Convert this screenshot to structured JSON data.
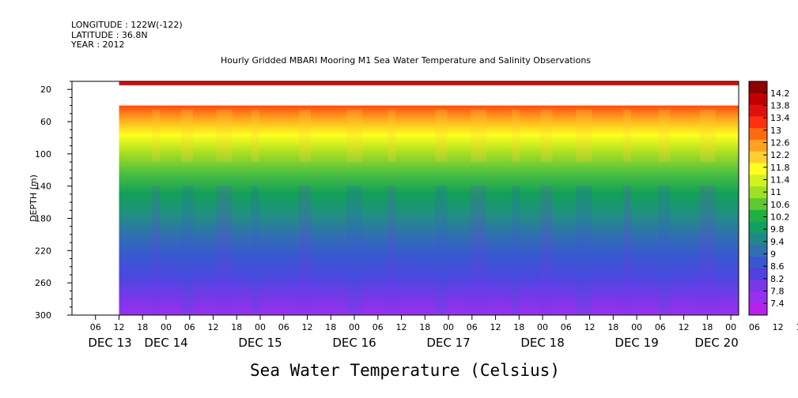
{
  "header": {
    "longitude": "LONGITUDE : 122W(-122)",
    "latitude": "LATITUDE : 36.8N",
    "year": "YEAR : 2012"
  },
  "chart_data": {
    "type": "heatmap",
    "title": "Hourly Gridded MBARI Mooring M1 Sea Water Temperature and Salinity Observations",
    "ylabel": "DEPTH (m)",
    "xlabel": "",
    "footer": "Sea Water Temperature (Celsius)",
    "y_ticks": [
      20,
      60,
      100,
      140,
      180,
      220,
      260,
      300
    ],
    "ylim": [
      300,
      10
    ],
    "y_inverted": true,
    "x_hour_ticks": [
      "06",
      "12",
      "18",
      "00",
      "06",
      "12",
      "18",
      "00",
      "06",
      "12",
      "18",
      "00",
      "06",
      "12",
      "18",
      "00",
      "06",
      "12",
      "18",
      "00",
      "06",
      "12",
      "18",
      "00",
      "06",
      "12",
      "18",
      "00",
      "06",
      "12",
      "18",
      "00"
    ],
    "x_day_labels": [
      "DEC 13",
      "DEC 14",
      "DEC 15",
      "DEC 16",
      "DEC 17",
      "DEC 18",
      "DEC 19",
      "DEC 20"
    ],
    "x_start": "2012-12-13 00:00",
    "x_end": "2012-12-20 02:00",
    "data_start": "2012-12-13 12:00",
    "depth_bands": [
      {
        "depth_top": 10,
        "depth_bottom": 15,
        "value": 14.2
      },
      {
        "depth_top": 40,
        "depth_bottom": 50,
        "value": 13.0
      },
      {
        "depth_top": 50,
        "depth_bottom": 70,
        "value": 12.0
      },
      {
        "depth_top": 70,
        "depth_bottom": 100,
        "value": 11.0
      },
      {
        "depth_top": 100,
        "depth_bottom": 160,
        "value": 10.0
      },
      {
        "depth_top": 160,
        "depth_bottom": 200,
        "value": 9.4
      },
      {
        "depth_top": 200,
        "depth_bottom": 240,
        "value": 8.8
      },
      {
        "depth_top": 240,
        "depth_bottom": 280,
        "value": 8.2
      },
      {
        "depth_top": 280,
        "depth_bottom": 300,
        "value": 7.8
      }
    ],
    "colorbar": {
      "labels": [
        "14.2",
        "13.8",
        "13.4",
        "13",
        "12.6",
        "12.2",
        "11.8",
        "11.4",
        "11",
        "10.6",
        "10.2",
        "9.8",
        "9.4",
        "9",
        "8.6",
        "8.2",
        "7.8",
        "7.4"
      ],
      "colors": [
        "#8b0000",
        "#c00000",
        "#e01010",
        "#ff3010",
        "#ff6a10",
        "#ffa020",
        "#ffd030",
        "#ffff20",
        "#d0f020",
        "#a0e020",
        "#60c830",
        "#20b040",
        "#10a060",
        "#208888",
        "#3070b0",
        "#3858d0",
        "#5040e0",
        "#7838e8",
        "#9830f0",
        "#b820f0"
      ]
    },
    "grid": false
  }
}
